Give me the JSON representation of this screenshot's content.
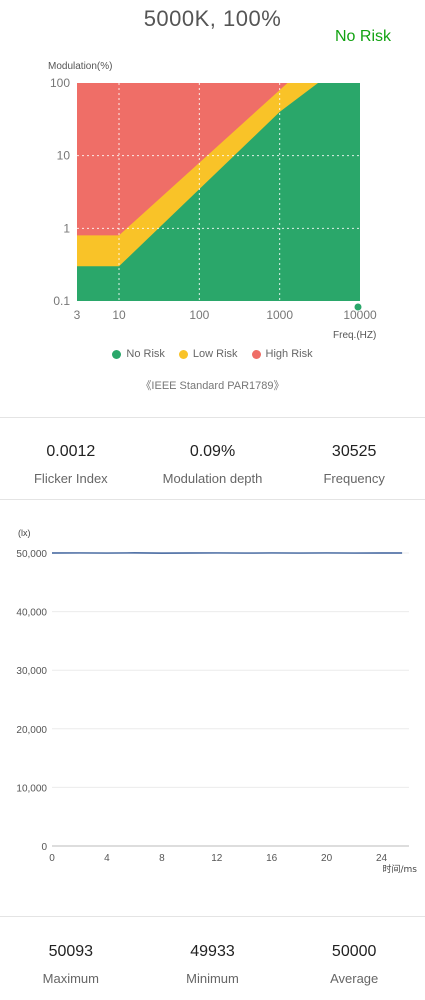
{
  "header": {
    "title": "5000K, 100%",
    "risk_status": "No Risk",
    "risk_color": "#12a312"
  },
  "risk_chart": {
    "type": "area",
    "ylabel": "Modulation(%)",
    "xlabel": "Freq.(HZ)",
    "x_scale": "log",
    "y_scale": "log",
    "xlim": [
      3,
      10000
    ],
    "ylim": [
      0.1,
      100
    ],
    "x_ticks": [
      "3",
      "10",
      "100",
      "1000",
      "10000"
    ],
    "y_ticks": [
      "0.1",
      "1",
      "10",
      "100"
    ],
    "grid": true,
    "regions": [
      {
        "name": "No Risk",
        "color": "#2aa76a",
        "upper_boundary": [
          [
            3,
            0.3
          ],
          [
            10,
            0.3
          ],
          [
            1000,
            40
          ],
          [
            3000,
            100
          ]
        ]
      },
      {
        "name": "Low Risk",
        "color": "#f9c328",
        "upper_boundary": [
          [
            3,
            0.8
          ],
          [
            10,
            0.8
          ],
          [
            1250,
            100
          ]
        ]
      },
      {
        "name": "High Risk",
        "color": "#ef6e67",
        "upper_boundary": [
          [
            3,
            100
          ],
          [
            10000,
            100
          ]
        ]
      }
    ],
    "measured_point": {
      "x": 10000,
      "y": 0.09
    },
    "legend": [
      "No Risk",
      "Low Risk",
      "High Risk"
    ],
    "legend_position": "bottom",
    "source": "《IEEE Standard PAR1789》"
  },
  "flicker_stats": [
    {
      "value": "0.0012",
      "label": "Flicker Index"
    },
    {
      "value": "0.09%",
      "label": "Modulation depth"
    },
    {
      "value": "30525",
      "label": "Frequency"
    }
  ],
  "chart_data": {
    "type": "line",
    "ylabel": "(lx)",
    "xlabel": "时间/ms",
    "xlim": [
      0,
      26
    ],
    "ylim": [
      0,
      50000
    ],
    "x_ticks": [
      "0",
      "4",
      "8",
      "12",
      "16",
      "20",
      "24"
    ],
    "y_ticks": [
      "0",
      "10,000",
      "20,000",
      "30,000",
      "40,000",
      "50,000"
    ],
    "grid": true,
    "series": [
      {
        "color": "#3a5f9a",
        "x": [
          0,
          2,
          4,
          6,
          8,
          10,
          12,
          14,
          16,
          18,
          20,
          22,
          24,
          25.5
        ],
        "values": [
          50000,
          50010,
          49990,
          50020,
          49980,
          50000,
          50015,
          49985,
          50005,
          49995,
          50010,
          49990,
          50000,
          50000
        ]
      }
    ]
  },
  "lux_stats": [
    {
      "value": "50093",
      "label": "Maximum"
    },
    {
      "value": "49933",
      "label": "Minimum"
    },
    {
      "value": "50000",
      "label": "Average"
    }
  ]
}
